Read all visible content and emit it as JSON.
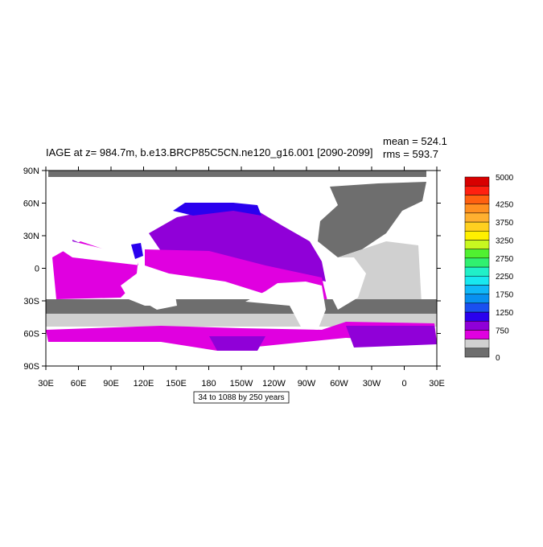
{
  "title": "IAGE at z= 984.7m, b.e13.BRCP85C5CN.ne120_g16.001 [2090-2099]",
  "stats": {
    "mean": "mean = 524.1",
    "rms": "rms = 593.7"
  },
  "map": {
    "lat_labels": [
      "90N",
      "60N",
      "30N",
      "0",
      "30S",
      "60S",
      "90S"
    ],
    "lon_labels": [
      "30E",
      "60E",
      "90E",
      "120E",
      "150E",
      "180",
      "150W",
      "120W",
      "90W",
      "60W",
      "30W",
      "0",
      "30E"
    ]
  },
  "info_box": "34 to 1088 by 250 years",
  "colorbar": {
    "labels": [
      5000,
      4250,
      3750,
      3250,
      2750,
      2250,
      1750,
      1250,
      750,
      0
    ],
    "colors": [
      "#6e6e6e",
      "#d0d0d0",
      "#e000e0",
      "#9000d8",
      "#2a00ee",
      "#1a50f0",
      "#0890f0",
      "#10b8f8",
      "#18e8f0",
      "#20f0c8",
      "#30f070",
      "#50f030",
      "#c8f820",
      "#fff000",
      "#ffd020",
      "#ffb030",
      "#ff9020",
      "#ff6010",
      "#ff2010",
      "#d80000"
    ]
  }
}
